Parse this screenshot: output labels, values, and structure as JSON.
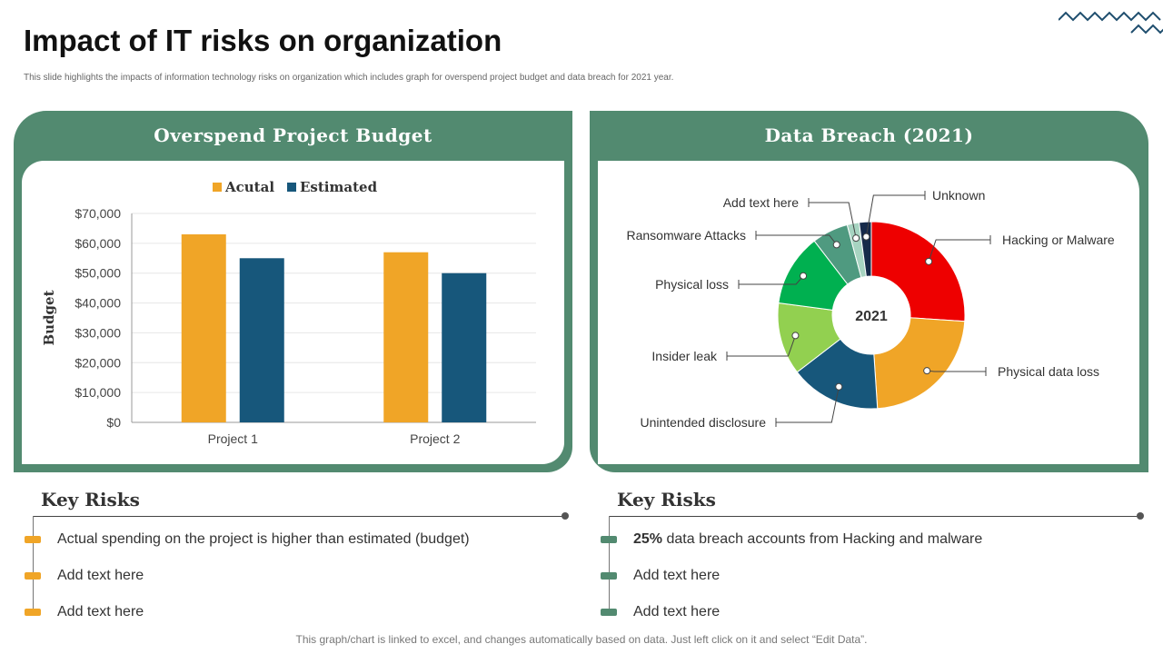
{
  "header": {
    "title": "Impact of IT risks on organization",
    "subtitle": "This slide highlights the impacts of information technology risks on organization which includes graph for overspend project budget and data breach for 2021 year."
  },
  "left_panel": {
    "title": "Overspend Project Budget"
  },
  "right_panel": {
    "title": "Data Breach (2021)"
  },
  "chart_data": [
    {
      "type": "bar",
      "categories": [
        "Project 1",
        "Project 2"
      ],
      "series": [
        {
          "name": "Acutal",
          "values": [
            63000,
            57000
          ],
          "color": "#f0a527"
        },
        {
          "name": "Estimated",
          "values": [
            55000,
            50000
          ],
          "color": "#17577b"
        }
      ],
      "ylabel": "Budget",
      "ylim": [
        0,
        70000
      ],
      "yticks": [
        "$0",
        "$10,000",
        "$20,000",
        "$30,000",
        "$40,000",
        "$50,000",
        "$60,000",
        "$70,000"
      ],
      "legend": "top",
      "grid": true
    },
    {
      "type": "pie",
      "donut": true,
      "center_label": "2021",
      "slices": [
        {
          "label": "Hacking or Malware",
          "value": 25,
          "color": "#ee0000"
        },
        {
          "label": "Physical data loss",
          "value": 22,
          "color": "#f0a527"
        },
        {
          "label": "Unintended disclosure",
          "value": 15,
          "color": "#17577b"
        },
        {
          "label": "Insider leak",
          "value": 12,
          "color": "#92d050"
        },
        {
          "label": "Physical loss",
          "value": 12,
          "color": "#00b050"
        },
        {
          "label": "Ransomware Attacks",
          "value": 6,
          "color": "#4f9a80"
        },
        {
          "label": "Add text here",
          "value": 2,
          "color": "#a7d4c1"
        },
        {
          "label": "Unknown",
          "value": 2,
          "color": "#162a4a"
        }
      ]
    }
  ],
  "key_risks_left": {
    "heading": "Key Risks",
    "items": [
      "Actual spending on the project is higher than estimated (budget)",
      "Add text here",
      "Add text here"
    ]
  },
  "key_risks_right": {
    "heading": "Key Risks",
    "highlight": "25%",
    "items_rest": [
      " data breach accounts from Hacking and malware",
      "Add text here",
      "Add text here"
    ]
  },
  "footer": "This graph/chart is linked to excel, and changes automatically based on data. Just left click on it and select “Edit Data”."
}
